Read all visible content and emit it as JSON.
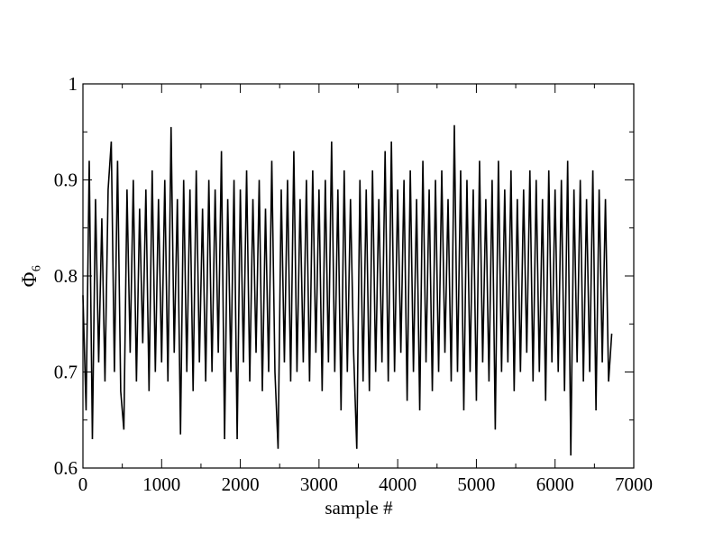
{
  "chart_data": {
    "type": "line",
    "xlabel": "sample #",
    "ylabel": "Φ₆",
    "x": [
      0,
      40,
      80,
      120,
      160,
      200,
      240,
      280,
      320,
      360,
      400,
      440,
      480,
      520,
      560,
      600,
      640,
      680,
      720,
      760,
      800,
      840,
      880,
      920,
      960,
      1000,
      1040,
      1080,
      1120,
      1160,
      1200,
      1240,
      1280,
      1320,
      1360,
      1400,
      1440,
      1480,
      1520,
      1560,
      1600,
      1640,
      1680,
      1720,
      1760,
      1800,
      1840,
      1880,
      1920,
      1960,
      2000,
      2040,
      2080,
      2120,
      2160,
      2200,
      2240,
      2280,
      2320,
      2360,
      2400,
      2440,
      2480,
      2520,
      2560,
      2600,
      2640,
      2680,
      2720,
      2760,
      2800,
      2840,
      2880,
      2920,
      2960,
      3000,
      3040,
      3080,
      3120,
      3160,
      3200,
      3240,
      3280,
      3320,
      3360,
      3400,
      3440,
      3480,
      3520,
      3560,
      3600,
      3640,
      3680,
      3720,
      3760,
      3800,
      3840,
      3880,
      3920,
      3960,
      4000,
      4040,
      4080,
      4120,
      4160,
      4200,
      4240,
      4280,
      4320,
      4360,
      4400,
      4440,
      4480,
      4520,
      4560,
      4600,
      4640,
      4680,
      4720,
      4760,
      4800,
      4840,
      4880,
      4920,
      4960,
      5000,
      5040,
      5080,
      5120,
      5160,
      5200,
      5240,
      5280,
      5320,
      5360,
      5400,
      5440,
      5480,
      5520,
      5560,
      5600,
      5640,
      5680,
      5720,
      5760,
      5800,
      5840,
      5880,
      5920,
      5960,
      6000,
      6040,
      6080,
      6120,
      6160,
      6200,
      6240,
      6280,
      6320,
      6360,
      6400,
      6440,
      6480,
      6520,
      6560,
      6600,
      6640,
      6680,
      6720
    ],
    "series": [
      {
        "color": "#000000",
        "values": [
          0.78,
          0.66,
          0.92,
          0.63,
          0.88,
          0.71,
          0.86,
          0.69,
          0.89,
          0.94,
          0.7,
          0.92,
          0.68,
          0.64,
          0.89,
          0.72,
          0.9,
          0.69,
          0.87,
          0.73,
          0.89,
          0.68,
          0.91,
          0.7,
          0.88,
          0.71,
          0.9,
          0.69,
          0.955,
          0.72,
          0.88,
          0.635,
          0.9,
          0.7,
          0.89,
          0.68,
          0.91,
          0.71,
          0.87,
          0.69,
          0.9,
          0.7,
          0.89,
          0.72,
          0.93,
          0.63,
          0.88,
          0.7,
          0.9,
          0.63,
          0.89,
          0.71,
          0.91,
          0.69,
          0.88,
          0.72,
          0.9,
          0.68,
          0.87,
          0.7,
          0.92,
          0.7,
          0.62,
          0.89,
          0.71,
          0.9,
          0.69,
          0.93,
          0.7,
          0.88,
          0.71,
          0.9,
          0.69,
          0.91,
          0.72,
          0.89,
          0.68,
          0.9,
          0.71,
          0.94,
          0.7,
          0.89,
          0.66,
          0.91,
          0.7,
          0.88,
          0.72,
          0.62,
          0.9,
          0.69,
          0.89,
          0.68,
          0.91,
          0.7,
          0.88,
          0.71,
          0.93,
          0.69,
          0.94,
          0.7,
          0.89,
          0.72,
          0.9,
          0.67,
          0.91,
          0.7,
          0.88,
          0.66,
          0.92,
          0.71,
          0.89,
          0.68,
          0.9,
          0.7,
          0.91,
          0.72,
          0.88,
          0.69,
          0.957,
          0.7,
          0.91,
          0.66,
          0.9,
          0.7,
          0.89,
          0.67,
          0.92,
          0.71,
          0.88,
          0.69,
          0.9,
          0.64,
          0.92,
          0.7,
          0.89,
          0.71,
          0.91,
          0.68,
          0.88,
          0.7,
          0.89,
          0.72,
          0.91,
          0.69,
          0.9,
          0.7,
          0.88,
          0.67,
          0.91,
          0.71,
          0.89,
          0.7,
          0.9,
          0.68,
          0.92,
          0.613,
          0.89,
          0.71,
          0.9,
          0.69,
          0.88,
          0.7,
          0.91,
          0.66,
          0.89,
          0.71,
          0.88,
          0.69,
          0.74
        ]
      }
    ],
    "xlim": [
      0,
      7000
    ],
    "xticks": [
      0,
      1000,
      2000,
      3000,
      4000,
      5000,
      6000,
      7000
    ],
    "xminorticks": [
      500,
      1500,
      2500,
      3500,
      4500,
      5500,
      6500
    ],
    "ylim": [
      0.6,
      1
    ],
    "yticks": [
      0.6,
      0.7,
      0.8,
      0.9,
      1
    ],
    "yminorticks": [
      0.65,
      0.75,
      0.85,
      0.95
    ],
    "grid": false
  }
}
